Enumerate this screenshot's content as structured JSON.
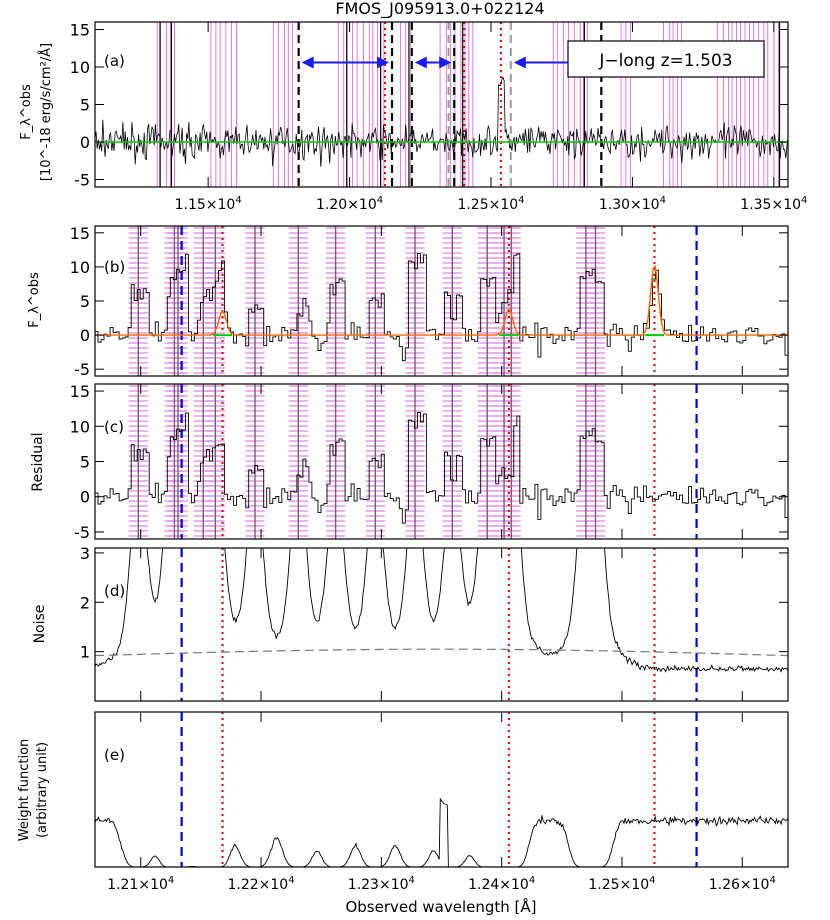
{
  "title": "FMOS_J095913.0+022124",
  "xlabel": "Observed wavelength [Å]",
  "times": "×10",
  "tick_exponent": "4",
  "colors": {
    "spectrum": "#000000",
    "model": "#ff6600",
    "continuum": "#00cc00",
    "sky_mask": "#cc33cc",
    "line_marker": "#dd0000",
    "window_marker": "#0000dd",
    "arrows": "#1a1aff",
    "range_marker": "#000000",
    "gap_marker": "#999999",
    "noise_expected": "#777777"
  },
  "chart_data": [
    {
      "id": "a",
      "type": "line",
      "panel_label": "(a)",
      "ylabel_lines": [
        "F_λ^obs",
        "[10^-18 erg/s/cm²/Å]"
      ],
      "band_label": "J−long z=1.503",
      "xlim": [
        1.11,
        1.355
      ],
      "ylim": [
        -6,
        16
      ],
      "yticks": [
        -5,
        0,
        5,
        10,
        15
      ],
      "xticks": [
        1.15,
        1.2,
        1.25,
        1.3,
        1.35
      ],
      "xtick_labels": [
        "1.15",
        "1.20",
        "1.25",
        "1.30",
        "1.35"
      ],
      "dashed_black": [
        1.182,
        1.215,
        1.222,
        1.237,
        1.289
      ],
      "dashed_gray": [
        1.235,
        1.257
      ],
      "dotted_red": [
        1.2125,
        1.2405,
        1.2535
      ],
      "arrows": [
        [
          1.182,
          1.215
        ],
        [
          1.222,
          1.237
        ],
        [
          1.257,
          1.289
        ]
      ]
    },
    {
      "id": "b",
      "type": "line",
      "panel_label": "(b)",
      "ylabel_lines": [
        "F_λ^obs"
      ],
      "xlim": [
        1.2062,
        1.2638
      ],
      "ylim": [
        -6,
        16
      ],
      "yticks": [
        -5,
        0,
        5,
        10,
        15
      ],
      "dashed_blue": [
        1.2134,
        1.2562
      ],
      "dotted_red": [
        1.2168,
        1.2406,
        1.2527
      ],
      "model_peaks": [
        {
          "x": 1.2168,
          "amp": 3.5
        },
        {
          "x": 1.2406,
          "amp": 3.8
        },
        {
          "x": 1.2527,
          "amp": 10.2
        }
      ]
    },
    {
      "id": "c",
      "type": "line",
      "panel_label": "(c)",
      "ylabel_lines": [
        "Residual"
      ],
      "xlim": [
        1.2062,
        1.2638
      ],
      "ylim": [
        -6,
        16
      ],
      "yticks": [
        -5,
        0,
        5,
        10,
        15
      ],
      "dashed_blue": [
        1.2134,
        1.2562
      ],
      "dotted_red": [
        1.2168,
        1.2406,
        1.2527
      ]
    },
    {
      "id": "d",
      "type": "line",
      "panel_label": "(d)",
      "ylabel_lines": [
        "Noise"
      ],
      "xlim": [
        1.2062,
        1.2638
      ],
      "ylim": [
        0,
        3.1
      ],
      "yticks": [
        1,
        2,
        3
      ],
      "dashed_blue": [
        1.2134,
        1.2562
      ],
      "dotted_red": [
        1.2168,
        1.2406,
        1.2527
      ],
      "noise_base": 0.65,
      "noise_expected": [
        0.92,
        1.05
      ]
    },
    {
      "id": "e",
      "type": "line",
      "panel_label": "(e)",
      "ylabel_lines": [
        "Weight function",
        "(arbitrary unit)"
      ],
      "xlim": [
        1.2062,
        1.2638
      ],
      "ylim": [
        0,
        1
      ],
      "yticks": [],
      "xticks": [
        1.21,
        1.22,
        1.23,
        1.24,
        1.25,
        1.26
      ],
      "xtick_labels": [
        "1.21",
        "1.22",
        "1.23",
        "1.24",
        "1.25",
        "1.26"
      ],
      "dashed_blue": [
        1.2134,
        1.2562
      ],
      "dotted_red": [
        1.2168,
        1.2406,
        1.2527
      ]
    }
  ],
  "sky_lines": [
    1.2098,
    1.2128,
    1.2131,
    1.2152,
    1.2162,
    1.2195,
    1.2231,
    1.2262,
    1.2295,
    1.2328,
    1.2359,
    1.2388,
    1.2402,
    1.2408,
    1.247,
    1.2478
  ]
}
